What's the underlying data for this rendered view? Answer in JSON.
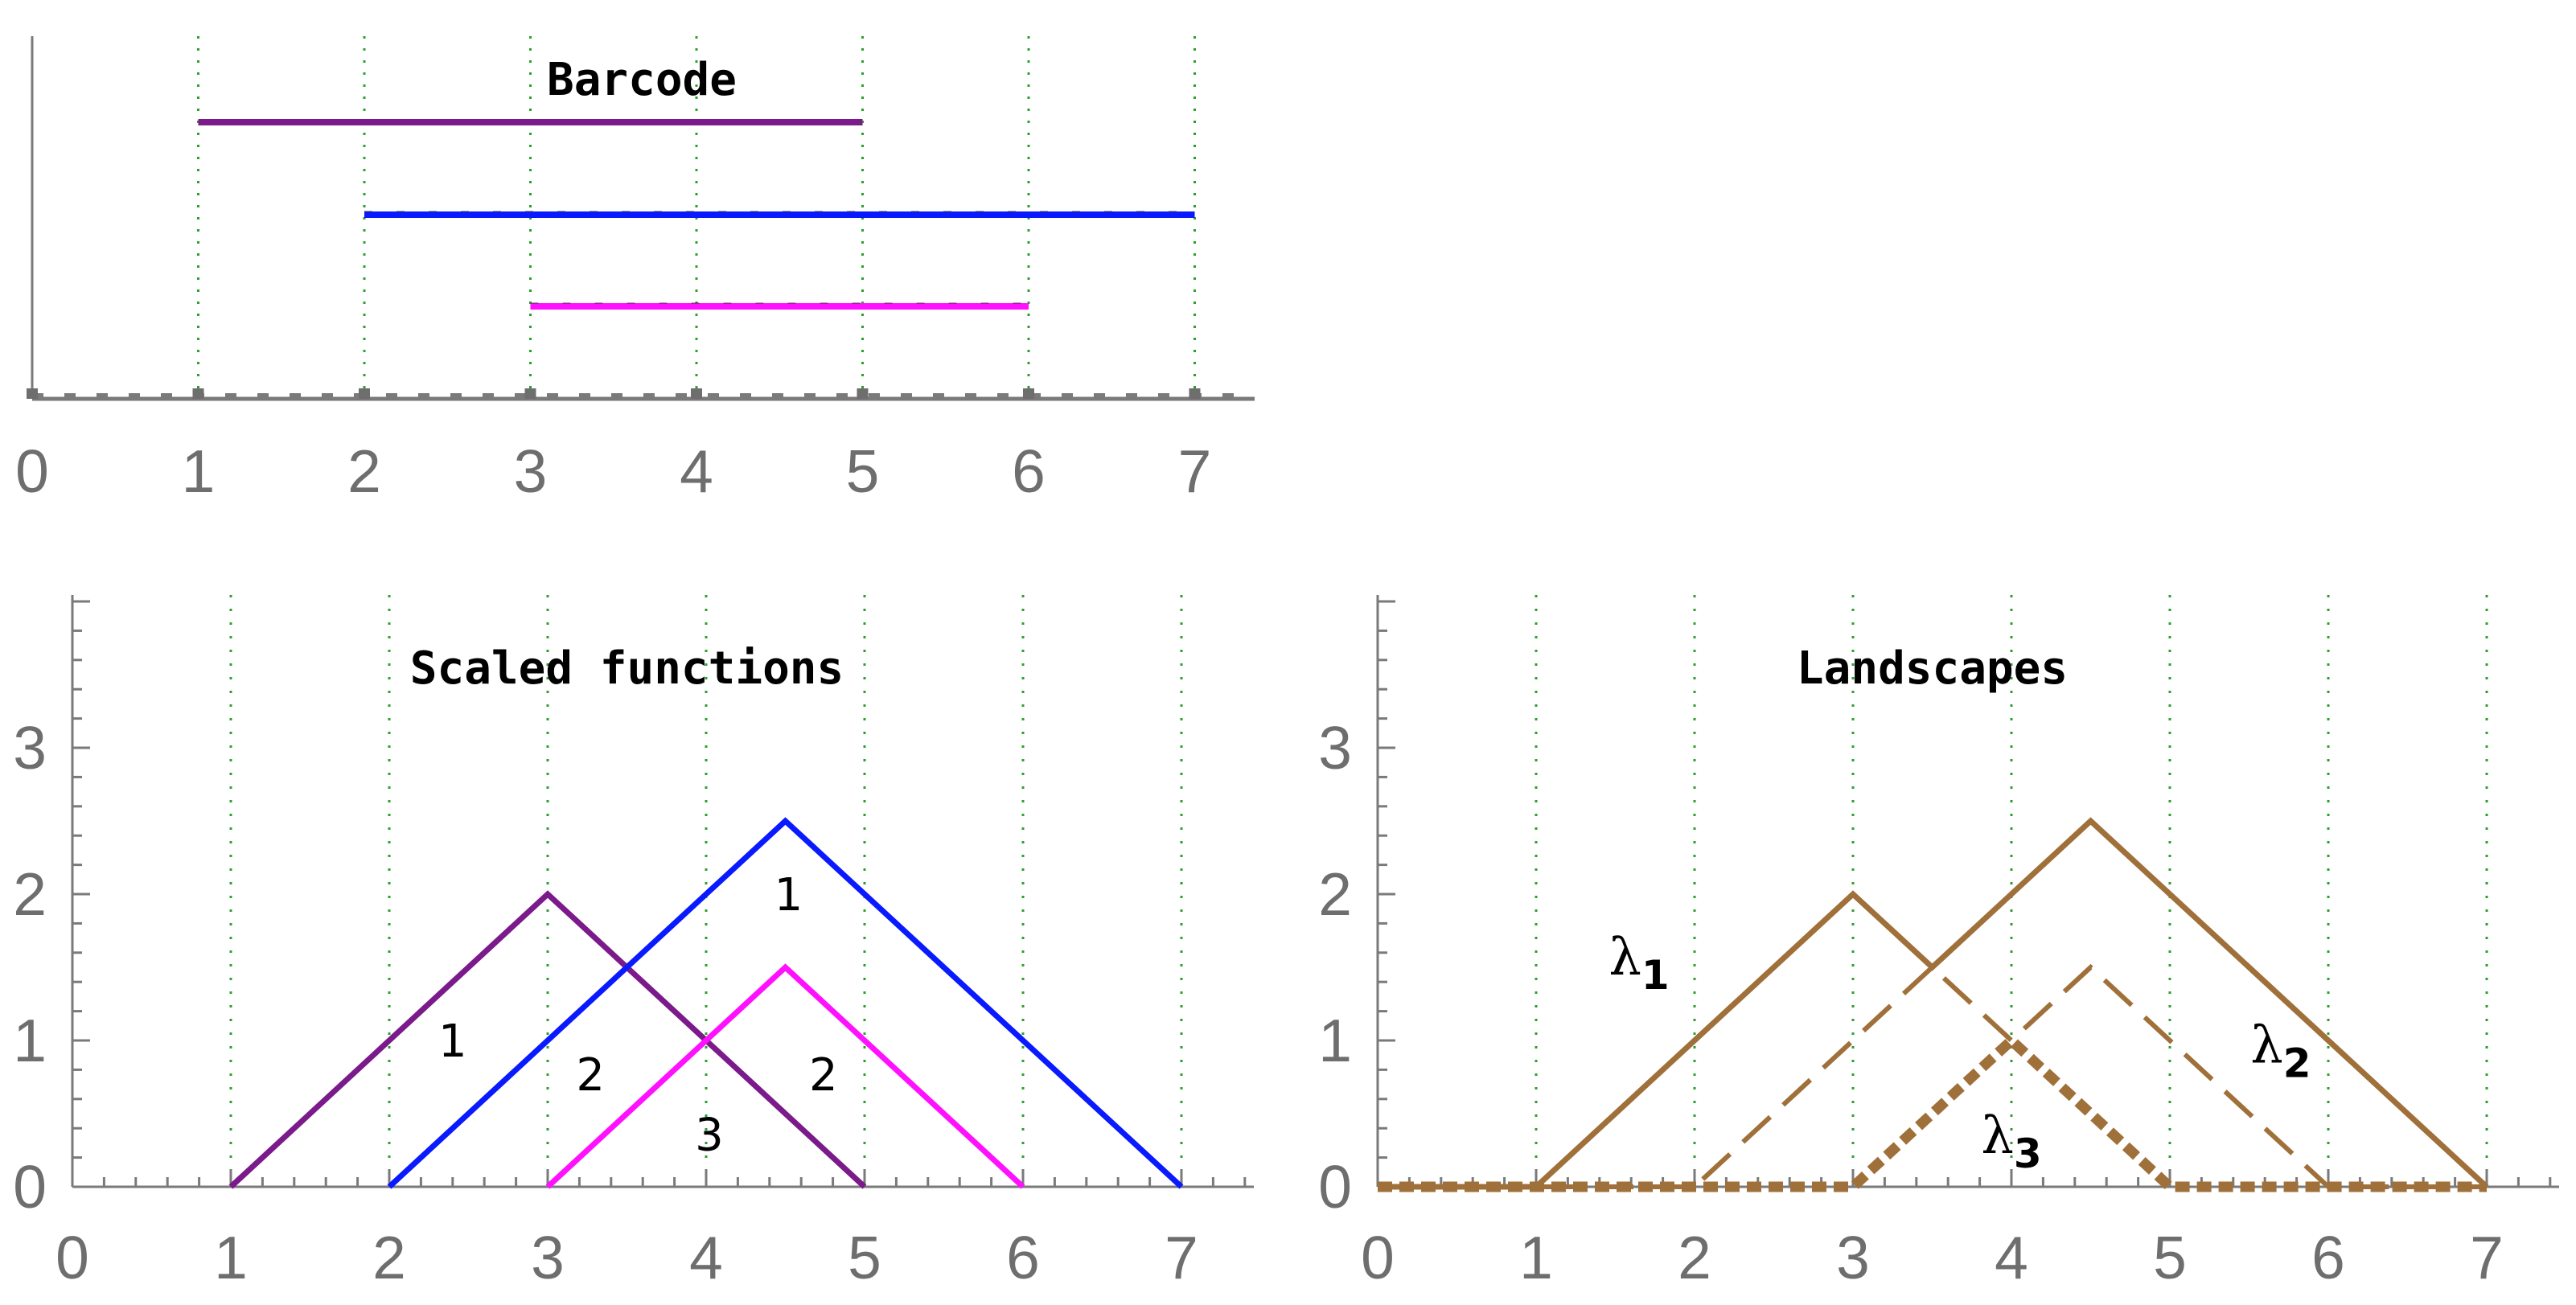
{
  "chart_data": [
    {
      "type": "barcode",
      "title": "Barcode",
      "xlim": [
        0,
        7
      ],
      "x_ticks": [
        "0",
        "1",
        "2",
        "3",
        "4",
        "5",
        "6",
        "7"
      ],
      "grid": "vertical-dotted",
      "bars": [
        {
          "start": 1,
          "end": 5,
          "color": "#7b1a8a"
        },
        {
          "start": 2,
          "end": 7,
          "color": "#0a1aff"
        },
        {
          "start": 3,
          "end": 6,
          "color": "#ff10ff"
        }
      ]
    },
    {
      "type": "line",
      "title": "Scaled functions",
      "xlim": [
        0,
        7
      ],
      "ylim": [
        0,
        4
      ],
      "x_ticks": [
        "0",
        "1",
        "2",
        "3",
        "4",
        "5",
        "6",
        "7"
      ],
      "y_ticks": [
        "0",
        "1",
        "2",
        "3"
      ],
      "grid": "vertical-dotted",
      "series": [
        {
          "color": "#7b1a8a",
          "style": "solid",
          "points": [
            [
              1,
              0
            ],
            [
              3,
              2
            ],
            [
              5,
              0
            ]
          ]
        },
        {
          "color": "#0a1aff",
          "style": "solid",
          "points": [
            [
              2,
              0
            ],
            [
              4.5,
              2.5
            ],
            [
              7,
              0
            ]
          ]
        },
        {
          "color": "#ff10ff",
          "style": "solid",
          "points": [
            [
              3,
              0
            ],
            [
              4.5,
              1.5
            ],
            [
              6,
              0
            ]
          ]
        }
      ],
      "annotations": [
        {
          "text": "1",
          "x": 2.4,
          "y": 1.0
        },
        {
          "text": "2",
          "x": 3.27,
          "y": 0.77
        },
        {
          "text": "1",
          "x": 4.52,
          "y": 2.0
        },
        {
          "text": "2",
          "x": 4.74,
          "y": 0.77
        },
        {
          "text": "3",
          "x": 4.02,
          "y": 0.36
        }
      ]
    },
    {
      "type": "line",
      "title": "Landscapes",
      "xlim": [
        0,
        7
      ],
      "ylim": [
        0,
        4
      ],
      "x_ticks": [
        "0",
        "1",
        "2",
        "3",
        "4",
        "5",
        "6",
        "7"
      ],
      "y_ticks": [
        "0",
        "1",
        "2",
        "3"
      ],
      "grid": "vertical-dotted",
      "series": [
        {
          "name_symbol": "λ",
          "name_subscript": "1",
          "color": "#a0703a",
          "style": "solid",
          "points": [
            [
              0,
              0
            ],
            [
              1,
              0
            ],
            [
              3,
              2
            ],
            [
              3.5,
              1.5
            ],
            [
              4.5,
              2.5
            ],
            [
              7,
              0
            ]
          ]
        },
        {
          "name_symbol": "λ",
          "name_subscript": "2",
          "color": "#a0703a",
          "style": "dashed",
          "points": [
            [
              0,
              0
            ],
            [
              2,
              0
            ],
            [
              3.5,
              1.5
            ],
            [
              4,
              1
            ],
            [
              4.5,
              1.5
            ],
            [
              6,
              0
            ],
            [
              7,
              0
            ]
          ]
        },
        {
          "name_symbol": "λ",
          "name_subscript": "3",
          "color": "#a0703a",
          "style": "dotted-thick",
          "points": [
            [
              0,
              0
            ],
            [
              3,
              0
            ],
            [
              4,
              1
            ],
            [
              5,
              0
            ],
            [
              7,
              0
            ]
          ]
        }
      ],
      "label_positions": [
        {
          "x": 1.65,
          "y": 1.45
        },
        {
          "x": 5.7,
          "y": 0.85
        },
        {
          "x": 4.0,
          "y": 0.23
        }
      ]
    }
  ]
}
